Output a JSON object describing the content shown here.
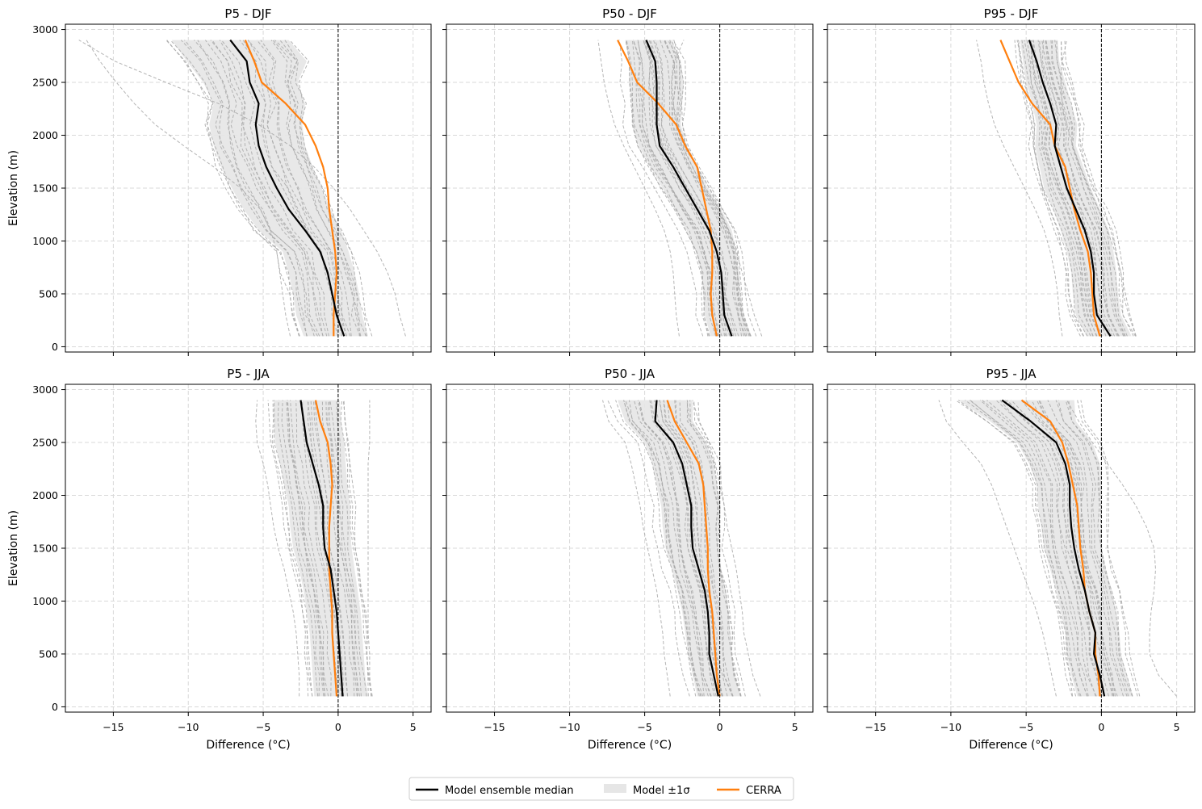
{
  "figure": {
    "legend": {
      "items": [
        {
          "label": "Model ensemble median",
          "kind": "line",
          "color": "#000000"
        },
        {
          "label": "Model ±1σ",
          "kind": "patch",
          "color": "#e6e6e6"
        },
        {
          "label": "CERRA",
          "kind": "line",
          "color": "#ff7f0e"
        }
      ]
    },
    "colors": {
      "median": "#000000",
      "cerra": "#ff7f0e",
      "band": "#e6e6e6",
      "members": "#a8a8a8",
      "grid": "#d9d9d9"
    }
  },
  "chart_data": [
    {
      "type": "line",
      "title": "P5 - DJF",
      "xlabel": "",
      "ylabel": "Elevation (m)",
      "xlim": [
        -18.2,
        6.2
      ],
      "ylim": [
        -50,
        3050
      ],
      "xticks": [
        -15,
        -10,
        -5,
        0,
        5
      ],
      "yticks": [
        0,
        500,
        1000,
        1500,
        2000,
        2500,
        3000
      ],
      "show_xticklabels": false,
      "show_yticklabels": true,
      "elevations": [
        100,
        300,
        500,
        700,
        900,
        1100,
        1300,
        1500,
        1700,
        1900,
        2100,
        2300,
        2500,
        2700,
        2900
      ],
      "median": [
        0.4,
        -0.1,
        -0.4,
        -0.7,
        -1.2,
        -2.2,
        -3.3,
        -4.1,
        -4.8,
        -5.3,
        -5.5,
        -5.3,
        -5.9,
        -6.1,
        -7.2
      ],
      "cerra": [
        -0.3,
        -0.3,
        -0.2,
        -0.1,
        -0.2,
        -0.4,
        -0.6,
        -0.7,
        -1.0,
        -1.5,
        -2.2,
        -3.5,
        -5.1,
        -5.6,
        -6.2
      ],
      "band_lo": [
        -2.3,
        -2.8,
        -3.0,
        -3.3,
        -3.7,
        -5.3,
        -6.3,
        -7.1,
        -7.8,
        -8.3,
        -8.6,
        -8.3,
        -9.0,
        -10.1,
        -11.1
      ],
      "band_hi": [
        2.0,
        1.6,
        1.4,
        1.1,
        0.7,
        0.2,
        -0.5,
        -1.1,
        -1.7,
        -2.2,
        -2.4,
        -2.2,
        -2.7,
        -2.1,
        -3.3
      ],
      "members": {
        "count": 24,
        "spread": 0.9,
        "tails": [
          [
            4.5,
            4.1,
            3.8,
            3.3,
            2.6,
            1.7,
            0.8,
            -0.3,
            -1.6,
            -3.2,
            -5.3,
            -8.0,
            -11.5,
            -14.9,
            -17.3
          ],
          [
            -3.2,
            -3.5,
            -3.7,
            -3.9,
            -4.1,
            -4.5,
            -5.2,
            -6.5,
            -8.3,
            -10.3,
            -12.2,
            -13.6,
            -14.8,
            -15.9,
            -16.8
          ]
        ]
      }
    },
    {
      "type": "line",
      "title": "P50 - DJF",
      "xlabel": "",
      "ylabel": "",
      "xlim": [
        -18.2,
        6.2
      ],
      "ylim": [
        -50,
        3050
      ],
      "xticks": [
        -15,
        -10,
        -5,
        0,
        5
      ],
      "yticks": [
        0,
        500,
        1000,
        1500,
        2000,
        2500,
        3000
      ],
      "show_xticklabels": false,
      "show_yticklabels": false,
      "elevations": [
        100,
        300,
        500,
        700,
        900,
        1100,
        1300,
        1500,
        1700,
        1900,
        2100,
        2300,
        2500,
        2700,
        2900
      ],
      "median": [
        0.8,
        0.3,
        0.2,
        0.1,
        -0.2,
        -0.7,
        -1.5,
        -2.3,
        -3.1,
        -4.0,
        -4.2,
        -4.2,
        -4.2,
        -4.3,
        -4.9
      ],
      "cerra": [
        -0.2,
        -0.5,
        -0.6,
        -0.5,
        -0.5,
        -0.6,
        -0.9,
        -1.2,
        -1.5,
        -2.3,
        -2.9,
        -4.1,
        -5.5,
        -6.1,
        -6.8
      ],
      "band_lo": [
        -0.6,
        -1.0,
        -1.1,
        -1.2,
        -1.6,
        -2.2,
        -3.0,
        -3.8,
        -4.6,
        -5.4,
        -5.8,
        -5.9,
        -6.0,
        -6.0,
        -6.3
      ],
      "band_hi": [
        2.1,
        1.6,
        1.4,
        1.3,
        1.1,
        0.8,
        0.1,
        -0.8,
        -1.5,
        -2.2,
        -2.6,
        -2.5,
        -2.4,
        -2.6,
        -3.2
      ],
      "members": {
        "count": 26,
        "spread": 0.6,
        "tails": [
          [
            2.8,
            2.3,
            1.9,
            1.5,
            1.1,
            0.6,
            0.0,
            -0.7,
            -1.5,
            -2.2,
            -2.8,
            -3.1,
            -3.2,
            -3.0,
            -2.4
          ],
          [
            -2.7,
            -2.9,
            -3.0,
            -3.1,
            -3.3,
            -3.7,
            -4.3,
            -5.0,
            -5.7,
            -6.4,
            -7.0,
            -7.4,
            -7.7,
            -7.9,
            -8.1
          ]
        ]
      }
    },
    {
      "type": "line",
      "title": "P95 - DJF",
      "xlabel": "",
      "ylabel": "",
      "xlim": [
        -18.2,
        6.2
      ],
      "ylim": [
        -50,
        3050
      ],
      "xticks": [
        -15,
        -10,
        -5,
        0,
        5
      ],
      "yticks": [
        0,
        500,
        1000,
        1500,
        2000,
        2500,
        3000
      ],
      "show_xticklabels": false,
      "show_yticklabels": false,
      "elevations": [
        100,
        300,
        500,
        700,
        900,
        1100,
        1300,
        1500,
        1700,
        1900,
        2100,
        2300,
        2500,
        2700,
        2900
      ],
      "median": [
        0.6,
        -0.3,
        -0.5,
        -0.5,
        -0.7,
        -1.1,
        -1.7,
        -2.3,
        -2.7,
        -3.1,
        -3.0,
        -3.4,
        -3.9,
        -4.3,
        -4.8
      ],
      "cerra": [
        -0.1,
        -0.5,
        -0.6,
        -0.7,
        -0.9,
        -1.4,
        -1.8,
        -2.1,
        -2.4,
        -3.1,
        -3.4,
        -4.6,
        -5.5,
        -6.1,
        -6.7
      ],
      "band_lo": [
        -1.0,
        -1.7,
        -1.9,
        -2.0,
        -2.3,
        -2.7,
        -3.2,
        -3.8,
        -4.1,
        -4.4,
        -4.3,
        -4.6,
        -5.0,
        -5.2,
        -5.4
      ],
      "band_hi": [
        2.0,
        1.3,
        1.1,
        1.0,
        0.8,
        0.5,
        -0.1,
        -0.7,
        -1.2,
        -1.7,
        -1.6,
        -2.0,
        -2.4,
        -2.8,
        -2.9
      ],
      "members": {
        "count": 26,
        "spread": 0.5,
        "tails": [
          [
            2.3,
            1.9,
            1.6,
            1.3,
            0.9,
            0.4,
            -0.2,
            -0.8,
            -1.4,
            -1.9,
            -2.3,
            -2.6,
            -2.7,
            -2.6,
            -2.3
          ],
          [
            -2.6,
            -2.8,
            -2.9,
            -3.1,
            -3.4,
            -3.8,
            -4.4,
            -5.1,
            -5.8,
            -6.5,
            -7.1,
            -7.5,
            -7.8,
            -8.0,
            -8.3
          ]
        ]
      }
    },
    {
      "type": "line",
      "title": "P5 - JJA",
      "xlabel": "Difference (°C)",
      "ylabel": "Elevation (m)",
      "xlim": [
        -18.2,
        6.2
      ],
      "ylim": [
        -50,
        3050
      ],
      "xticks": [
        -15,
        -10,
        -5,
        0,
        5
      ],
      "yticks": [
        0,
        500,
        1000,
        1500,
        2000,
        2500,
        3000
      ],
      "show_xticklabels": true,
      "show_yticklabels": true,
      "elevations": [
        100,
        300,
        500,
        700,
        900,
        1100,
        1300,
        1500,
        1700,
        1900,
        2100,
        2300,
        2500,
        2700,
        2900
      ],
      "median": [
        0.3,
        0.2,
        0.1,
        0.0,
        -0.1,
        -0.3,
        -0.5,
        -0.9,
        -1.0,
        -1.0,
        -1.3,
        -1.7,
        -2.1,
        -2.3,
        -2.5
      ],
      "cerra": [
        -0.1,
        -0.2,
        -0.3,
        -0.4,
        -0.4,
        -0.5,
        -0.6,
        -0.6,
        -0.6,
        -0.5,
        -0.4,
        -0.5,
        -0.7,
        -1.2,
        -1.5
      ],
      "band_lo": [
        -1.6,
        -1.7,
        -1.8,
        -1.9,
        -2.1,
        -2.3,
        -2.6,
        -3.0,
        -3.2,
        -3.3,
        -3.6,
        -3.9,
        -4.2,
        -4.3,
        -4.3
      ],
      "band_hi": [
        2.0,
        1.8,
        1.7,
        1.6,
        1.5,
        1.3,
        1.1,
        0.9,
        0.8,
        0.8,
        0.6,
        0.5,
        0.4,
        0.2,
        0.1
      ],
      "members": {
        "count": 26,
        "spread": 0.4,
        "tails": [
          [
            2.2,
            2.1,
            2.1,
            2.0,
            2.0,
            2.0,
            2.0,
            2.0,
            2.0,
            2.0,
            2.0,
            2.0,
            2.1,
            2.1,
            2.1
          ],
          [
            -2.6,
            -2.6,
            -2.7,
            -2.8,
            -3.0,
            -3.3,
            -3.6,
            -4.0,
            -4.3,
            -4.5,
            -4.7,
            -5.0,
            -5.4,
            -5.5,
            -5.4
          ]
        ]
      }
    },
    {
      "type": "line",
      "title": "P50 - JJA",
      "xlabel": "Difference (°C)",
      "ylabel": "",
      "xlim": [
        -18.2,
        6.2
      ],
      "ylim": [
        -50,
        3050
      ],
      "xticks": [
        -15,
        -10,
        -5,
        0,
        5
      ],
      "yticks": [
        0,
        500,
        1000,
        1500,
        2000,
        2500,
        3000
      ],
      "show_xticklabels": true,
      "show_yticklabels": false,
      "elevations": [
        100,
        300,
        500,
        700,
        900,
        1100,
        1300,
        1500,
        1700,
        1900,
        2100,
        2300,
        2500,
        2700,
        2900
      ],
      "median": [
        -0.1,
        -0.4,
        -0.7,
        -0.7,
        -0.8,
        -1.0,
        -1.4,
        -1.8,
        -1.9,
        -1.9,
        -2.2,
        -2.5,
        -3.1,
        -4.3,
        -4.2
      ],
      "cerra": [
        0.0,
        -0.2,
        -0.3,
        -0.4,
        -0.5,
        -0.7,
        -0.8,
        -0.8,
        -0.9,
        -1.0,
        -1.1,
        -1.4,
        -2.2,
        -3.0,
        -3.5
      ],
      "band_lo": [
        -1.5,
        -1.8,
        -2.1,
        -2.3,
        -2.5,
        -2.8,
        -3.2,
        -3.6,
        -3.8,
        -3.9,
        -4.2,
        -4.5,
        -5.0,
        -6.3,
        -6.8
      ],
      "band_hi": [
        1.4,
        1.0,
        0.8,
        0.7,
        0.6,
        0.4,
        0.1,
        -0.1,
        -0.1,
        0.0,
        -0.2,
        -0.4,
        -0.9,
        -1.8,
        -1.8
      ],
      "members": {
        "count": 26,
        "spread": 0.5,
        "tails": [
          [
            2.7,
            2.2,
            1.9,
            1.6,
            1.5,
            1.3,
            1.1,
            0.8,
            0.5,
            0.3,
            0.0,
            -0.3,
            -0.7,
            -1.4,
            -1.8
          ],
          [
            -3.3,
            -3.5,
            -3.7,
            -3.8,
            -4.0,
            -4.2,
            -4.5,
            -4.8,
            -5.1,
            -5.3,
            -5.6,
            -5.9,
            -6.3,
            -7.4,
            -7.8
          ]
        ]
      }
    },
    {
      "type": "line",
      "title": "P95 - JJA",
      "xlabel": "Difference (°C)",
      "ylabel": "",
      "xlim": [
        -18.2,
        6.2
      ],
      "ylim": [
        -50,
        3050
      ],
      "xticks": [
        -15,
        -10,
        -5,
        0,
        5
      ],
      "yticks": [
        0,
        500,
        1000,
        1500,
        2000,
        2500,
        3000
      ],
      "show_xticklabels": true,
      "show_yticklabels": false,
      "elevations": [
        100,
        300,
        500,
        700,
        900,
        1100,
        1300,
        1500,
        1700,
        1900,
        2100,
        2300,
        2500,
        2700,
        2900
      ],
      "median": [
        0.2,
        -0.1,
        -0.5,
        -0.4,
        -0.8,
        -1.1,
        -1.5,
        -1.8,
        -2.0,
        -2.1,
        -2.1,
        -2.4,
        -3.0,
        -4.7,
        -6.6
      ],
      "cerra": [
        -0.1,
        -0.2,
        -0.4,
        -0.4,
        -0.8,
        -1.1,
        -1.2,
        -1.4,
        -1.5,
        -1.6,
        -1.9,
        -2.2,
        -2.6,
        -3.4,
        -5.3
      ],
      "band_lo": [
        -1.6,
        -2.0,
        -2.3,
        -2.4,
        -2.7,
        -3.0,
        -3.4,
        -3.8,
        -4.0,
        -4.2,
        -4.3,
        -4.8,
        -5.6,
        -7.4,
        -9.5
      ],
      "band_hi": [
        2.1,
        1.7,
        1.3,
        1.2,
        1.0,
        0.7,
        0.3,
        0.0,
        -0.1,
        -0.1,
        0.0,
        -0.1,
        -0.6,
        -1.7,
        -1.8
      ],
      "members": {
        "count": 26,
        "spread": 0.5,
        "tails": [
          [
            5.0,
            3.8,
            3.2,
            3.2,
            3.3,
            3.5,
            3.6,
            3.5,
            3.0,
            2.3,
            1.4,
            0.4,
            -0.6,
            -1.5,
            -2.3
          ],
          [
            -3.0,
            -3.3,
            -3.6,
            -3.9,
            -4.3,
            -4.8,
            -5.3,
            -5.8,
            -6.3,
            -6.8,
            -7.3,
            -8.0,
            -9.2,
            -10.3,
            -10.8
          ]
        ]
      }
    }
  ]
}
